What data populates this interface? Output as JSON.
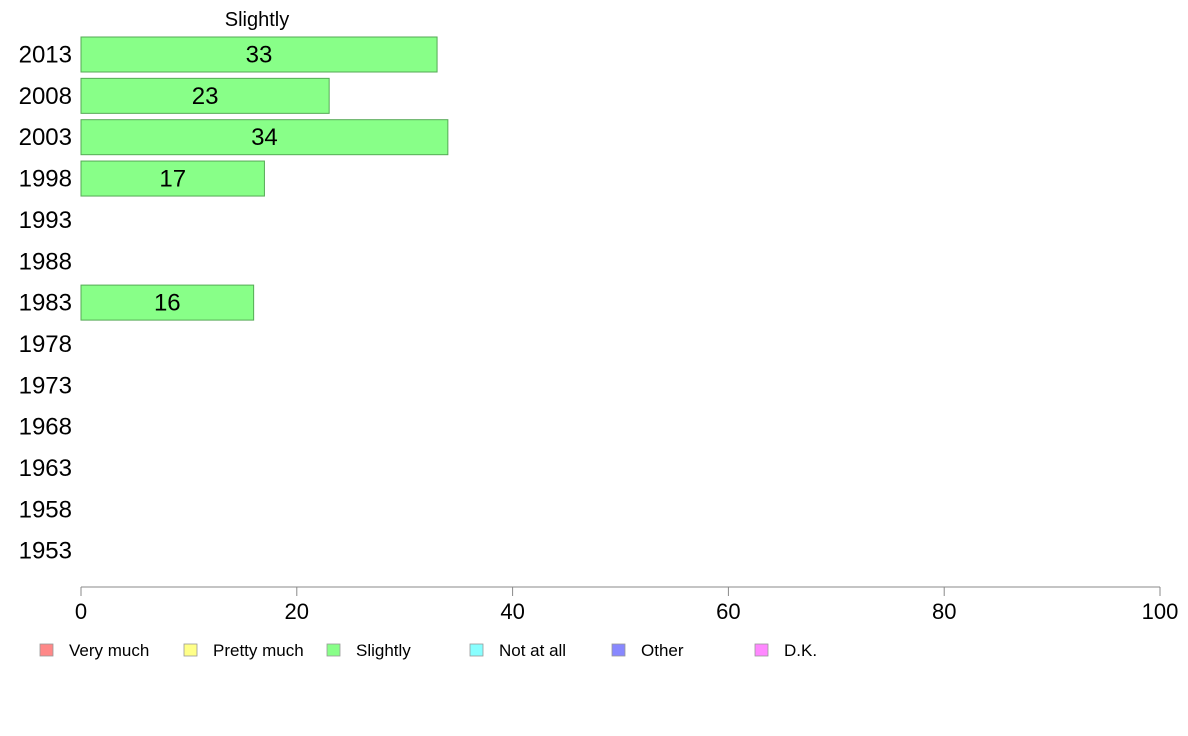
{
  "chart_data": {
    "type": "bar",
    "orientation": "horizontal",
    "title": "Slightly",
    "categories": [
      "2013",
      "2008",
      "2003",
      "1998",
      "1993",
      "1988",
      "1983",
      "1978",
      "1973",
      "1968",
      "1963",
      "1958",
      "1953"
    ],
    "values": [
      33,
      23,
      34,
      17,
      null,
      null,
      16,
      null,
      null,
      null,
      null,
      null,
      null
    ],
    "xlim": [
      0,
      100
    ],
    "xticks": [
      "0",
      "20",
      "40",
      "60",
      "80",
      "100"
    ],
    "grid": false,
    "bar_color": "#88ff88",
    "bar_edge_color": "#55aa55",
    "legend_placement": "bottom",
    "legend": [
      {
        "label": "Very much",
        "color": "#ff8888"
      },
      {
        "label": "Pretty much",
        "color": "#ffff88"
      },
      {
        "label": "Slightly",
        "color": "#88ff88"
      },
      {
        "label": "Not at all",
        "color": "#88ffff"
      },
      {
        "label": "Other",
        "color": "#8888ff"
      },
      {
        "label": "D.K.",
        "color": "#ff88ff"
      }
    ]
  }
}
